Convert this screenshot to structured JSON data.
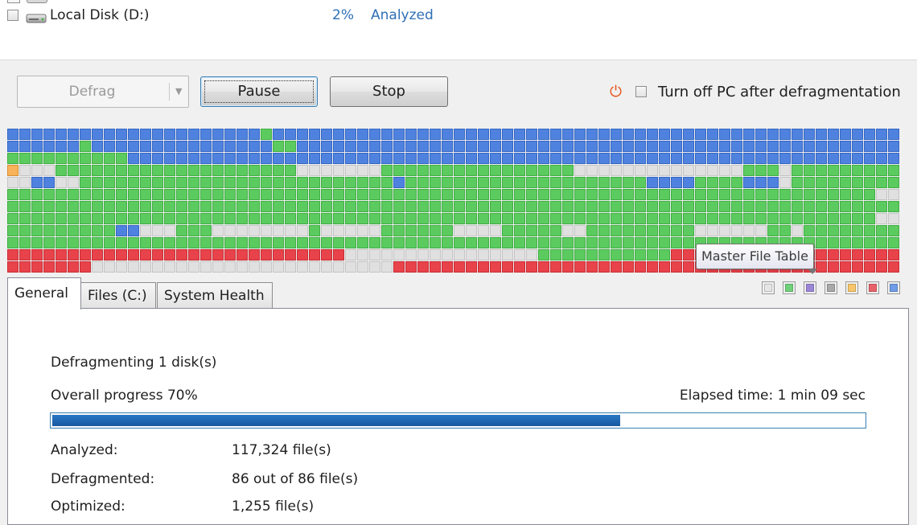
{
  "disk": {
    "name": "Local Disk (D:)",
    "percent": "2%",
    "status": "Analyzed"
  },
  "toolbar": {
    "defrag_label": "Defrag",
    "pause_label": "Pause",
    "stop_label": "Stop",
    "turn_off_label": "Turn off PC after defragmentation",
    "power_icon": "⏻"
  },
  "colors": {
    "free": "#e0e0e0",
    "used": "#5ccb5f",
    "mft": "#a88fd8",
    "system": "#a0a0a0",
    "locked": "#f7b25a",
    "fragmented": "#e8434b",
    "processed": "#4f82df"
  },
  "cluster_map": {
    "cols": 74,
    "legend": {
      "G": "free",
      "g": "used",
      "p": "mft",
      "s": "system",
      "o": "locked",
      "r": "fragmented",
      "b": "processed"
    },
    "rows": [
      "bbbbbbbbbbbbbbbbbbbbbgbbbbbbbbbbbbbbbbbbbbbbbbbbbbbbbbbbbbbbbbbbbbbbbbbbbb",
      "bbbbbbgbbbbbbbbbbbbbbbggbbbbbbbbbbbbbbbbbbbbbbbbbbbbbbbbbbbbbbbbbbbbbbbbbb",
      "ggggggggggbbbbbbbbbbbbbbbbbbbbbbbbbbbbbbbbbbbbbbbbbbbbbbbbbbbbbbbbbbbbbbbb",
      "oGGGggggggggggggggggggggGGGGGGGggggggggggggggggGGGGGGGGGGGGGGgggGggggggggg",
      "GGbbGGggggggggggggggggggggggggggbggggggggggggggggggggbbbbggggbbbGggggggggg",
      "ggggggggggggggggggggggggggggggggggggggggggggggggggggggggggggggggggggggggGG",
      "gggggggggggggggggggggggggggggggggggggggggggggggggggggggggggggggggggggggggg",
      "ggggggggggggggggggggggggggggggggggggggggggggggggggggggggggggggggggggggggGG",
      "gggggggggbbGGGgggGGGGGGGGgGGGGGggggggGGGGgggggGGgggggggggGGGGGGggGgggggggg",
      "gggggggggggggggggggggggggggggggggggggggggggggggggggggggggggggggggggggggggg",
      "rrrrrrrrrrrrrrrrrrrrrrrrrrrrGGGGGGGGGGGGGGGGgggggggggggrrrrrrrrrrrrrrrrrrr",
      "rrrrrrrGGGGGGGGGGGGGGGGGGGGGGGGGrrrrrrrrrrrrrrrrrrrrrrrrrrrrrrrrrrrrrrrrrr"
    ]
  },
  "tooltip": "Master File Table",
  "tabs": [
    "General",
    "Files (C:)",
    "System Health"
  ],
  "legend_swatches": [
    "#e6e6e6",
    "#6fd07a",
    "#9a86d6",
    "#a8a8a8",
    "#f7c66a",
    "#e8626a",
    "#6f9ce6"
  ],
  "progress": {
    "status": "Defragmenting 1 disk(s)",
    "overall_label": "Overall progress 70%",
    "percent": 70,
    "elapsed": "Elapsed time: 1 min 09 sec"
  },
  "stats": [
    {
      "label": "Analyzed:",
      "value": "117,324 file(s)"
    },
    {
      "label": "Defragmented:",
      "value": "86 out of 86 file(s)"
    },
    {
      "label": "Optimized:",
      "value": "1,255 file(s)"
    }
  ]
}
